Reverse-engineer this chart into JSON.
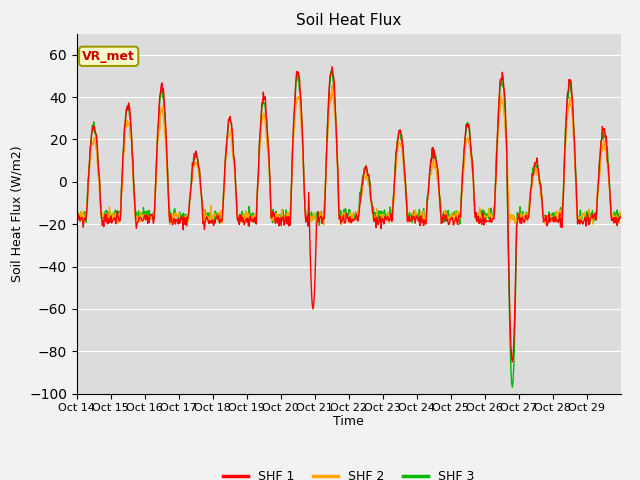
{
  "title": "Soil Heat Flux",
  "ylabel": "Soil Heat Flux (W/m2)",
  "xlabel": "Time",
  "annotation": "VR_met",
  "ylim": [
    -100,
    70
  ],
  "yticks": [
    -100,
    -80,
    -60,
    -40,
    -20,
    0,
    20,
    40,
    60
  ],
  "xtick_labels": [
    "Oct 14",
    "Oct 15",
    "Oct 16",
    "Oct 17",
    "Oct 18",
    "Oct 19",
    "Oct 20",
    "Oct 21",
    "Oct 22",
    "Oct 23",
    "Oct 24",
    "Oct 25",
    "Oct 26",
    "Oct 27",
    "Oct 28",
    "Oct 29"
  ],
  "color_shf1": "#ff0000",
  "color_shf2": "#ffa500",
  "color_shf3": "#00bb00",
  "legend_labels": [
    "SHF 1",
    "SHF 2",
    "SHF 3"
  ],
  "plot_bg": "#dcdcdc",
  "fig_bg": "#f2f2f2",
  "annotation_fg": "#cc0000",
  "annotation_bg": "#ffffcc",
  "annotation_border": "#999900",
  "linewidth": 1.0,
  "title_fontsize": 11,
  "tick_fontsize": 8,
  "label_fontsize": 9
}
